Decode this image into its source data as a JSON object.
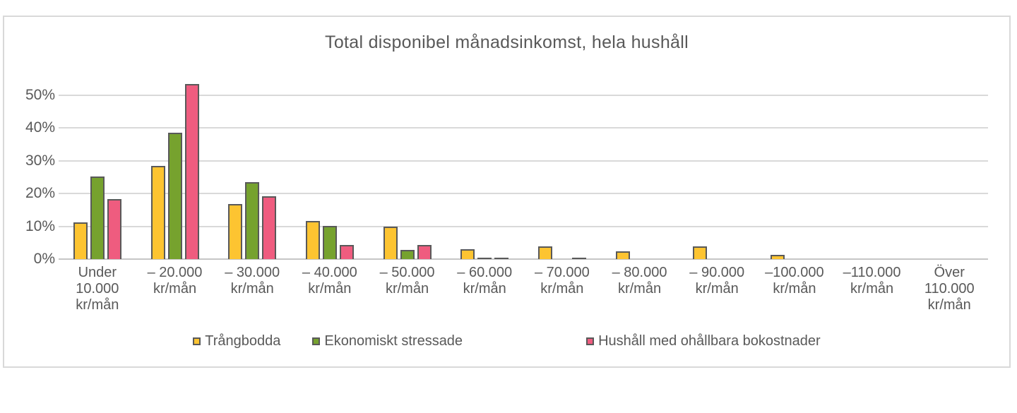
{
  "chart_data": {
    "type": "bar",
    "title": "Total disponibel månadsinkomst, hela hushåll",
    "categories": [
      [
        "Under",
        "10.000",
        "kr/mån"
      ],
      [
        "– 20.000",
        "kr/mån"
      ],
      [
        "– 30.000",
        "kr/mån"
      ],
      [
        "– 40.000",
        "kr/mån"
      ],
      [
        "– 50.000",
        "kr/mån"
      ],
      [
        "– 60.000",
        "kr/mån"
      ],
      [
        "– 70.000",
        "kr/mån"
      ],
      [
        "– 80.000",
        "kr/mån"
      ],
      [
        "– 90.000",
        "kr/mån"
      ],
      [
        "–100.000",
        "kr/mån"
      ],
      [
        "–110.000",
        "kr/mån"
      ],
      [
        "Över",
        "110.000",
        "kr/mån"
      ]
    ],
    "series": [
      {
        "name": "Trångbodda",
        "color": "#FDC431",
        "values": [
          11.2,
          28.5,
          16.9,
          11.7,
          10.0,
          3.1,
          3.9,
          2.3,
          3.9,
          1.4,
          0,
          0
        ]
      },
      {
        "name": "Ekonomiskt stressade",
        "color": "#76A22E",
        "values": [
          25.2,
          38.5,
          23.5,
          10.1,
          2.9,
          0.4,
          0,
          0,
          0,
          0,
          0,
          0
        ]
      },
      {
        "name": "Hushåll med ohållbara bokostnader",
        "color": "#EF5C7F",
        "values": [
          18.3,
          53.4,
          19.1,
          4.4,
          4.3,
          0.4,
          0.5,
          0,
          0,
          0,
          0,
          0
        ]
      }
    ],
    "yticks": [
      "0%",
      "10%",
      "20%",
      "30%",
      "40%",
      "50%"
    ],
    "ylim": [
      0,
      50
    ],
    "grid": true,
    "legend_position": "bottom",
    "colors": {
      "grid": "#D9D9D9",
      "axis": "#C6C6C6",
      "text": "#595959",
      "bar_outline": "#595959",
      "frame_border": "#D9D9D9",
      "background": "#FFFFFF"
    }
  }
}
